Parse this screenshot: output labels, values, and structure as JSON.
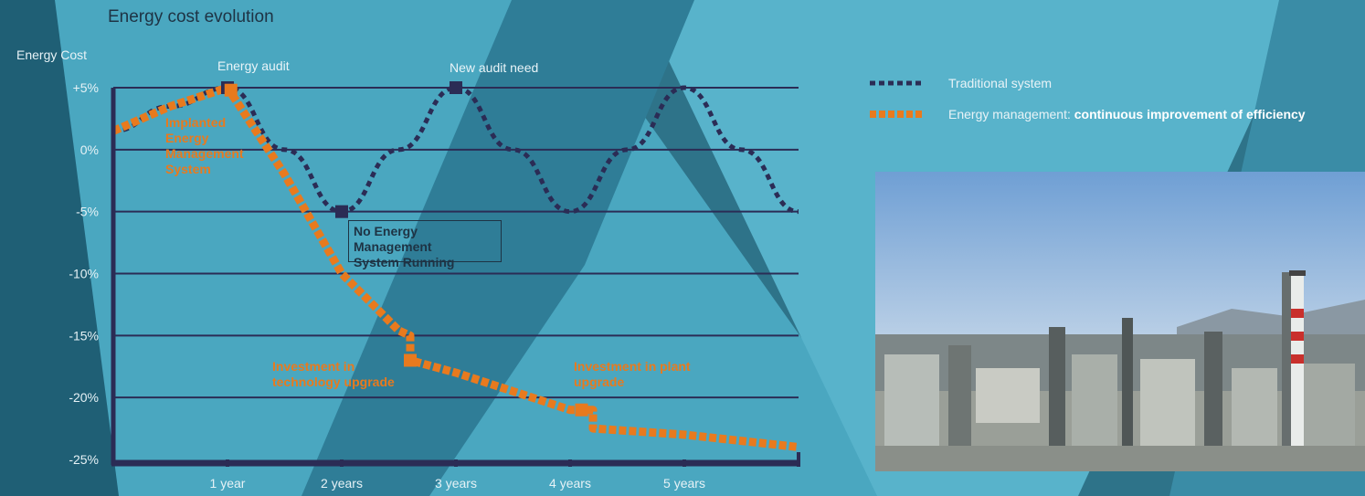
{
  "chart_data": {
    "type": "line",
    "title": "Energy cost evolution",
    "ylabel": "Energy Cost",
    "xlabel": "",
    "ylim": [
      -25,
      5
    ],
    "xlim": [
      0,
      6
    ],
    "x_ticks": [
      1,
      2,
      3,
      4,
      5
    ],
    "x_tick_labels": [
      "1 year",
      "2 years",
      "3 years",
      "4 years",
      "5 years"
    ],
    "y_ticks": [
      5,
      0,
      -5,
      -10,
      -15,
      -20,
      -25
    ],
    "y_tick_labels": [
      "+5%",
      "0%",
      "-5%",
      "-10%",
      "-15%",
      "-20%",
      "-25%"
    ],
    "grid": true,
    "legend_position": "top-right",
    "series": [
      {
        "name": "Traditional system",
        "color": "#2b2c55",
        "style": "dotted",
        "x": [
          0,
          0.5,
          1,
          1.5,
          2,
          2.5,
          3,
          3.5,
          4,
          4.5,
          5,
          5.5,
          6
        ],
        "y": [
          1.5,
          3.5,
          5,
          0,
          -5,
          0,
          5,
          0,
          -5,
          0,
          5,
          0,
          -5
        ]
      },
      {
        "name": "Energy management:",
        "name_bold": "continuous improvement of efficiency",
        "color": "#e87a1e",
        "style": "dashed",
        "x": [
          0,
          0.5,
          1,
          1.5,
          2,
          2.5,
          2.6,
          2.6,
          3,
          3.5,
          4,
          4.2,
          4.2,
          5,
          6
        ],
        "y": [
          1.5,
          3.5,
          5,
          -2,
          -10,
          -14.6,
          -15,
          -17,
          -18,
          -19.5,
          -21,
          -21,
          -22.5,
          -23,
          -24
        ]
      }
    ],
    "markers": [
      {
        "x": 1,
        "y": 5,
        "color": "#2b2c55"
      },
      {
        "x": 1.03,
        "y": 4.8,
        "color": "#e87a1e"
      },
      {
        "x": 2,
        "y": -5,
        "color": "#2b2c55"
      },
      {
        "x": 3,
        "y": 5,
        "color": "#2b2c55"
      },
      {
        "x": 2.6,
        "y": -17,
        "color": "#e87a1e"
      },
      {
        "x": 4.1,
        "y": -21,
        "color": "#e87a1e"
      }
    ],
    "annotations": {
      "energy_audit": "Energy audit",
      "new_audit_need": "New audit need",
      "no_ems": [
        "No Energy Management",
        "System Running"
      ],
      "implanted": [
        "Implanted",
        "Energy",
        "Management",
        "System"
      ],
      "tech_upgrade": [
        "Investment in",
        "technology upgrade"
      ],
      "plant_upgrade": [
        "Investment in plant",
        "upgrade"
      ]
    }
  }
}
